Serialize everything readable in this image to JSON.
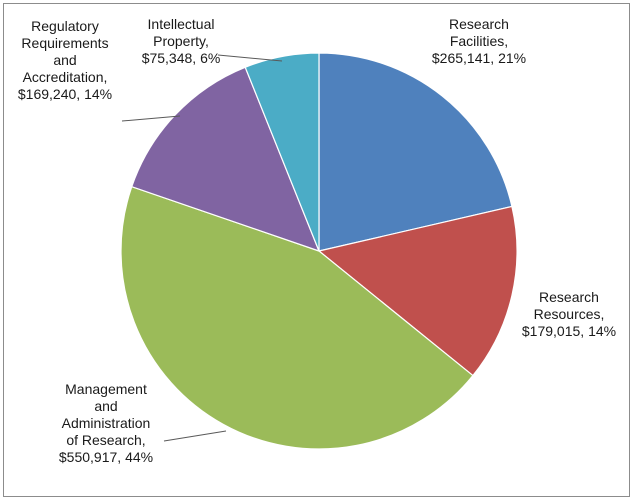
{
  "chart_data": {
    "type": "pie",
    "title": "",
    "legend": "none",
    "start_angle_deg": 0,
    "direction": "clockwise",
    "slices": [
      {
        "label": "Research Facilities",
        "value": 265141,
        "value_label": "$265,141",
        "percent_label": "21%",
        "color": "#4f81bd",
        "label_lines": [
          "Research",
          "Facilities,",
          "$265,141, 21%"
        ]
      },
      {
        "label": "Research Resources",
        "value": 179015,
        "value_label": "$179,015",
        "percent_label": "14%",
        "color": "#c0504d",
        "label_lines": [
          "Research",
          "Resources,",
          "$179,015, 14%"
        ]
      },
      {
        "label": "Management and Administration of Research",
        "value": 550917,
        "value_label": "$550,917",
        "percent_label": "44%",
        "color": "#9bbb59",
        "label_lines": [
          "Management",
          "and",
          "Administration",
          "of Research,",
          "$550,917, 44%"
        ]
      },
      {
        "label": "Regulatory Requirements and Accreditation",
        "value": 169240,
        "value_label": "$169,240",
        "percent_label": "14%",
        "color": "#8064a2",
        "label_lines": [
          "Regulatory",
          "Requirements",
          "and",
          "Accreditation,",
          "$169,240, 14%"
        ]
      },
      {
        "label": "Intellectual Property",
        "value": 75348,
        "value_label": "$75,348",
        "percent_label": "6%",
        "color": "#4bacc6",
        "label_lines": [
          "Intellectual",
          "Property,",
          "$75,348, 6%"
        ]
      }
    ]
  }
}
